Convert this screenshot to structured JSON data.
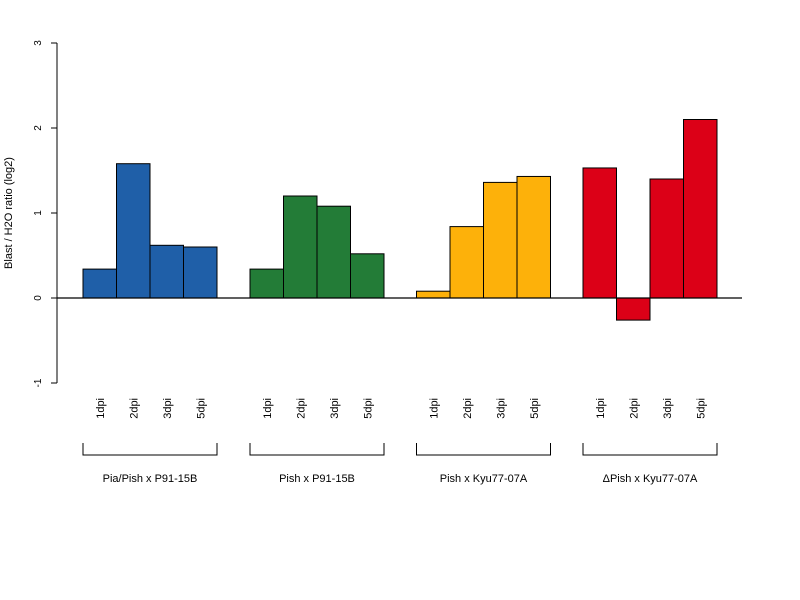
{
  "chart_data": {
    "type": "bar",
    "ylabel": "Blast / H2O ratio (log2)",
    "ylim": [
      -1,
      3
    ],
    "yticks": [
      -1,
      0,
      1,
      2,
      3
    ],
    "tick_labels": [
      "-1",
      "0",
      "1",
      "2",
      "3"
    ],
    "groups": [
      {
        "name": "Pia/Pish x P91-15B",
        "color": "#1f5fa8",
        "categories": [
          "1dpi",
          "2dpi",
          "3dpi",
          "5dpi"
        ],
        "values": [
          0.34,
          1.58,
          0.62,
          0.6
        ]
      },
      {
        "name": "Pish x P91-15B",
        "color": "#237c37",
        "categories": [
          "1dpi",
          "2dpi",
          "3dpi",
          "5dpi"
        ],
        "values": [
          0.34,
          1.2,
          1.08,
          0.52
        ]
      },
      {
        "name": "Pish x Kyu77-07A",
        "color": "#fdb10a",
        "categories": [
          "1dpi",
          "2dpi",
          "3dpi",
          "5dpi"
        ],
        "values": [
          0.08,
          0.84,
          1.36,
          1.43
        ]
      },
      {
        "name": "ΔPish x Kyu77-07A",
        "color": "#dc0017",
        "categories": [
          "1dpi",
          "2dpi",
          "3dpi",
          "5dpi"
        ],
        "values": [
          1.53,
          -0.26,
          1.4,
          2.1
        ]
      }
    ]
  }
}
